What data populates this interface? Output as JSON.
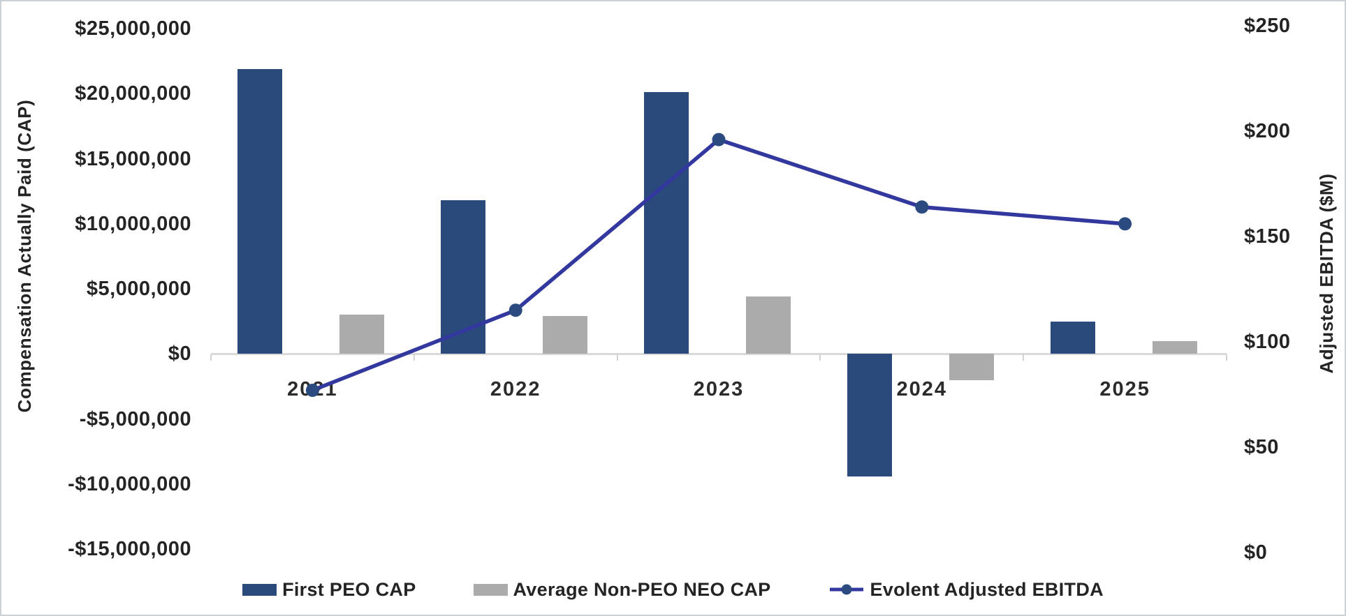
{
  "chart_data": {
    "type": "bar+line",
    "title": "",
    "categories": [
      "2021",
      "2022",
      "2023",
      "2024",
      "2025"
    ],
    "series": [
      {
        "name": "First PEO CAP",
        "type": "bar",
        "axis": "left",
        "color": "#2A4A7B",
        "values": [
          21900000,
          11800000,
          20100000,
          -9400000,
          2500000
        ]
      },
      {
        "name": "Average Non-PEO NEO CAP",
        "type": "bar",
        "axis": "left",
        "color": "#ABABAB",
        "values": [
          3000000,
          2900000,
          4400000,
          -2000000,
          1000000
        ]
      },
      {
        "name": "Evolent Adjusted EBITDA",
        "type": "line",
        "axis": "right",
        "color": "#33389E",
        "marker_color": "#2A4A80",
        "values": [
          77,
          115,
          196,
          164,
          156
        ]
      }
    ],
    "left_axis": {
      "title": "Compensation Actually Paid (CAP)",
      "min": -15000000,
      "max": 25000000,
      "step": 5000000,
      "tick_labels": [
        "$25,000,000",
        "$20,000,000",
        "$15,000,000",
        "$10,000,000",
        "$5,000,000",
        "$0",
        "-$5,000,000",
        "-$10,000,000",
        "-$15,000,000"
      ]
    },
    "right_axis": {
      "title": "Adjusted EBITDA ($M)",
      "min": 0,
      "max": 250,
      "step": 50,
      "tick_labels": [
        "$250",
        "$200",
        "$150",
        "$100",
        "$50",
        "$0"
      ]
    },
    "legend_position": "bottom",
    "grid": false,
    "colors": {
      "axis_line": "#D9D9D9",
      "text": "#242424",
      "background": "#FFFFFF"
    }
  }
}
